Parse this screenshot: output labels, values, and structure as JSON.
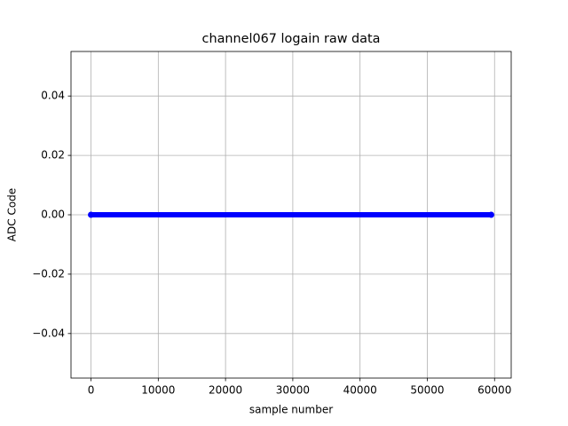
{
  "chart_data": {
    "type": "line",
    "title": "channel067 logain raw data",
    "xlabel": "sample number",
    "ylabel": "ADC Code",
    "x": [
      0,
      59499
    ],
    "series": [
      {
        "color": "#0000ff",
        "marker": "circle",
        "values": [
          0,
          0
        ]
      }
    ],
    "xlim": [
      -2975,
      62474
    ],
    "xticks": [
      0,
      10000,
      20000,
      30000,
      40000,
      50000,
      60000
    ],
    "ylim": [
      -0.055,
      0.055
    ],
    "yticks": [
      {
        "value": -0.04,
        "label": "−0.04"
      },
      {
        "value": -0.02,
        "label": "−0.02"
      },
      {
        "value": 0,
        "label": "0.00"
      },
      {
        "value": 0.02,
        "label": "0.02"
      },
      {
        "value": 0.04,
        "label": "0.04"
      }
    ],
    "grid": true
  }
}
